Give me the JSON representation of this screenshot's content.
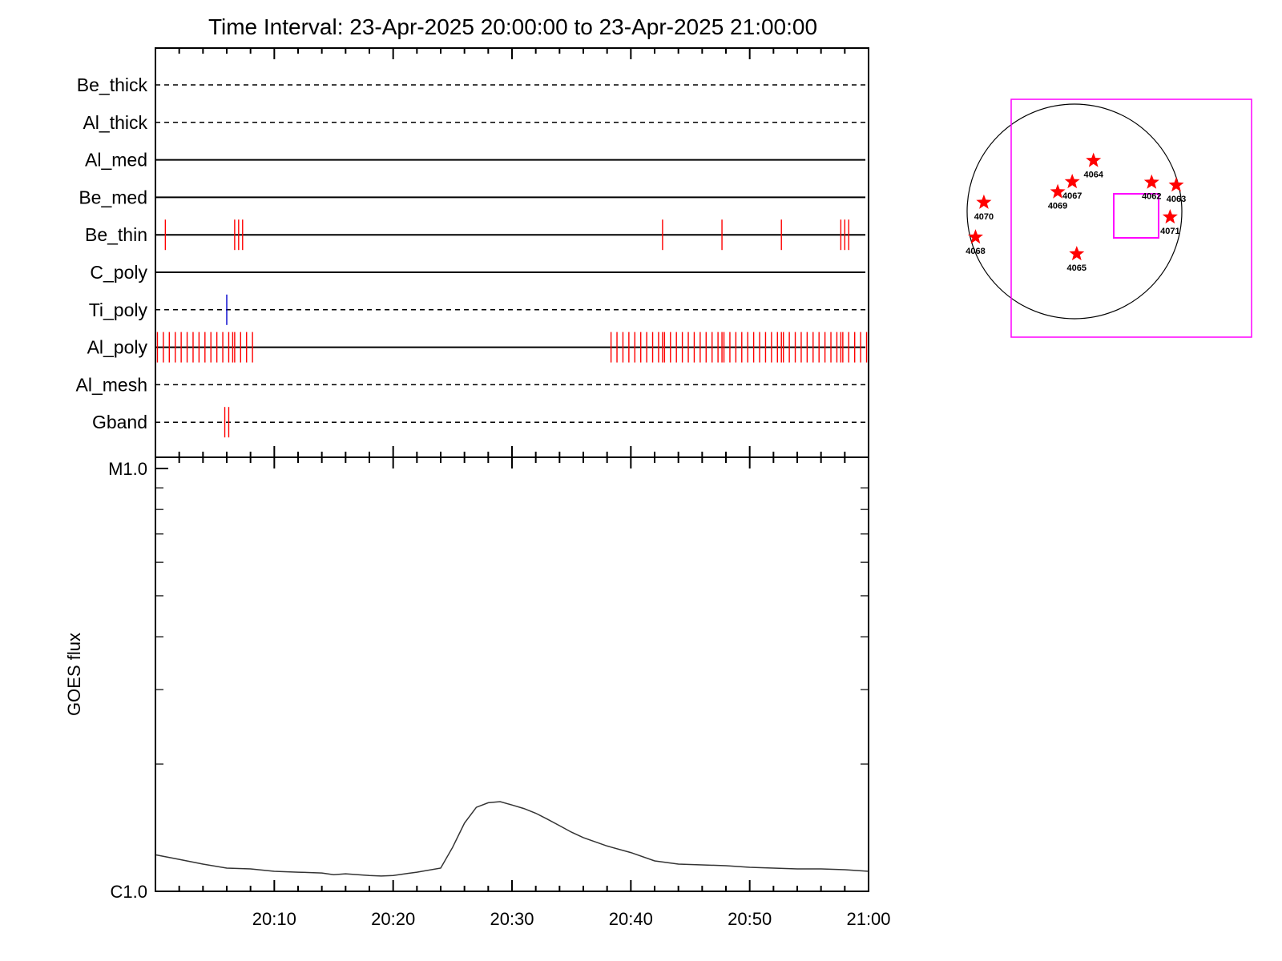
{
  "chart_data": [
    {
      "type": "event-timeline",
      "title": "Time Interval: 23-Apr-2025 20:00:00 to 23-Apr-2025 21:00:00",
      "x_range": [
        "20:00",
        "21:00"
      ],
      "rows": [
        {
          "name": "Be_thick",
          "style": "dashed",
          "events": []
        },
        {
          "name": "Al_thick",
          "style": "dashed",
          "events": []
        },
        {
          "name": "Al_med",
          "style": "solid",
          "events": []
        },
        {
          "name": "Be_med",
          "style": "solid",
          "events": []
        },
        {
          "name": "Be_thin",
          "style": "solid",
          "events": [
            {
              "t": "20:00:50",
              "color": "#ff0000"
            },
            {
              "t": "20:06:40",
              "color": "#ff0000"
            },
            {
              "t": "20:07:00",
              "color": "#ff0000"
            },
            {
              "t": "20:07:20",
              "color": "#ff0000"
            },
            {
              "t": "20:42:40",
              "color": "#ff0000"
            },
            {
              "t": "20:47:40",
              "color": "#ff0000"
            },
            {
              "t": "20:52:40",
              "color": "#ff0000"
            },
            {
              "t": "20:57:40",
              "color": "#ff0000"
            },
            {
              "t": "20:58:00",
              "color": "#ff0000"
            },
            {
              "t": "20:58:20",
              "color": "#ff0000"
            }
          ]
        },
        {
          "name": "C_poly",
          "style": "solid",
          "events": []
        },
        {
          "name": "Ti_poly",
          "style": "dashed",
          "events": [
            {
              "t": "20:06:00",
              "color": "#0000cc"
            }
          ]
        },
        {
          "name": "Al_poly",
          "style": "solid",
          "events": [
            {
              "t": "20:00:10",
              "color": "#ff0000"
            },
            {
              "t": "20:00:40",
              "color": "#ff0000"
            },
            {
              "t": "20:01:10",
              "color": "#ff0000"
            },
            {
              "t": "20:01:40",
              "color": "#ff0000"
            },
            {
              "t": "20:02:10",
              "color": "#ff0000"
            },
            {
              "t": "20:02:40",
              "color": "#ff0000"
            },
            {
              "t": "20:03:10",
              "color": "#ff0000"
            },
            {
              "t": "20:03:40",
              "color": "#ff0000"
            },
            {
              "t": "20:04:10",
              "color": "#ff0000"
            },
            {
              "t": "20:04:40",
              "color": "#ff0000"
            },
            {
              "t": "20:05:10",
              "color": "#ff0000"
            },
            {
              "t": "20:05:40",
              "color": "#ff0000"
            },
            {
              "t": "20:06:10",
              "color": "#ff0000"
            },
            {
              "t": "20:06:30",
              "color": "#ff0000"
            },
            {
              "t": "20:06:40",
              "color": "#ff0000"
            },
            {
              "t": "20:07:10",
              "color": "#ff0000"
            },
            {
              "t": "20:07:40",
              "color": "#ff0000"
            },
            {
              "t": "20:08:10",
              "color": "#ff0000"
            },
            {
              "t": "20:38:20",
              "color": "#ff0000"
            },
            {
              "t": "20:38:50",
              "color": "#ff0000"
            },
            {
              "t": "20:39:20",
              "color": "#ff0000"
            },
            {
              "t": "20:39:50",
              "color": "#ff0000"
            },
            {
              "t": "20:40:20",
              "color": "#ff0000"
            },
            {
              "t": "20:40:50",
              "color": "#ff0000"
            },
            {
              "t": "20:41:20",
              "color": "#ff0000"
            },
            {
              "t": "20:41:50",
              "color": "#ff0000"
            },
            {
              "t": "20:42:20",
              "color": "#ff0000"
            },
            {
              "t": "20:42:40",
              "color": "#ff0000"
            },
            {
              "t": "20:42:50",
              "color": "#ff0000"
            },
            {
              "t": "20:43:20",
              "color": "#ff0000"
            },
            {
              "t": "20:43:50",
              "color": "#ff0000"
            },
            {
              "t": "20:44:20",
              "color": "#ff0000"
            },
            {
              "t": "20:44:50",
              "color": "#ff0000"
            },
            {
              "t": "20:45:20",
              "color": "#ff0000"
            },
            {
              "t": "20:45:50",
              "color": "#ff0000"
            },
            {
              "t": "20:46:20",
              "color": "#ff0000"
            },
            {
              "t": "20:46:50",
              "color": "#ff0000"
            },
            {
              "t": "20:47:20",
              "color": "#ff0000"
            },
            {
              "t": "20:47:40",
              "color": "#ff0000"
            },
            {
              "t": "20:47:50",
              "color": "#ff0000"
            },
            {
              "t": "20:48:20",
              "color": "#ff0000"
            },
            {
              "t": "20:48:50",
              "color": "#ff0000"
            },
            {
              "t": "20:49:20",
              "color": "#ff0000"
            },
            {
              "t": "20:49:50",
              "color": "#ff0000"
            },
            {
              "t": "20:50:20",
              "color": "#ff0000"
            },
            {
              "t": "20:50:50",
              "color": "#ff0000"
            },
            {
              "t": "20:51:20",
              "color": "#ff0000"
            },
            {
              "t": "20:51:50",
              "color": "#ff0000"
            },
            {
              "t": "20:52:20",
              "color": "#ff0000"
            },
            {
              "t": "20:52:40",
              "color": "#ff0000"
            },
            {
              "t": "20:52:50",
              "color": "#ff0000"
            },
            {
              "t": "20:53:20",
              "color": "#ff0000"
            },
            {
              "t": "20:53:50",
              "color": "#ff0000"
            },
            {
              "t": "20:54:20",
              "color": "#ff0000"
            },
            {
              "t": "20:54:50",
              "color": "#ff0000"
            },
            {
              "t": "20:55:20",
              "color": "#ff0000"
            },
            {
              "t": "20:55:50",
              "color": "#ff0000"
            },
            {
              "t": "20:56:20",
              "color": "#ff0000"
            },
            {
              "t": "20:56:50",
              "color": "#ff0000"
            },
            {
              "t": "20:57:20",
              "color": "#ff0000"
            },
            {
              "t": "20:57:40",
              "color": "#ff0000"
            },
            {
              "t": "20:57:50",
              "color": "#ff0000"
            },
            {
              "t": "20:58:20",
              "color": "#ff0000"
            },
            {
              "t": "20:58:50",
              "color": "#ff0000"
            },
            {
              "t": "20:59:20",
              "color": "#ff0000"
            },
            {
              "t": "20:59:50",
              "color": "#ff0000"
            }
          ]
        },
        {
          "name": "Al_mesh",
          "style": "dashed",
          "events": []
        },
        {
          "name": "Gband",
          "style": "dashed",
          "events": [
            {
              "t": "20:05:50",
              "color": "#ff0000"
            },
            {
              "t": "20:06:10",
              "color": "#ff0000"
            }
          ]
        }
      ]
    },
    {
      "type": "line",
      "ylabel": "GOES flux",
      "yscale": "log",
      "ylim": [
        1e-06,
        1e-05
      ],
      "y_tick_labels": [
        {
          "value": 1e-05,
          "label": "M1.0"
        },
        {
          "value": 1e-06,
          "label": "C1.0"
        }
      ],
      "x_tick_labels": [
        "20:10",
        "20:20",
        "20:30",
        "20:40",
        "20:50",
        "21:00"
      ],
      "grid": false,
      "series": [
        {
          "color": "#333333",
          "x": [
            "20:00",
            "20:02",
            "20:04",
            "20:06",
            "20:08",
            "20:10",
            "20:12",
            "20:14",
            "20:15",
            "20:16",
            "20:18",
            "20:19",
            "20:20",
            "20:22",
            "20:24",
            "20:25",
            "20:26",
            "20:27",
            "20:28",
            "20:29",
            "20:30",
            "20:31",
            "20:32",
            "20:33",
            "20:34",
            "20:35",
            "20:36",
            "20:38",
            "20:40",
            "20:42",
            "20:44",
            "20:46",
            "20:48",
            "20:50",
            "20:52",
            "20:54",
            "20:56",
            "20:58",
            "21:00"
          ],
          "y": [
            1.22e-06,
            1.19e-06,
            1.16e-06,
            1.135e-06,
            1.13e-06,
            1.115e-06,
            1.11e-06,
            1.105e-06,
            1.095e-06,
            1.1e-06,
            1.09e-06,
            1.087e-06,
            1.09e-06,
            1.11e-06,
            1.135e-06,
            1.27e-06,
            1.45e-06,
            1.58e-06,
            1.62e-06,
            1.63e-06,
            1.6e-06,
            1.57e-06,
            1.53e-06,
            1.48e-06,
            1.43e-06,
            1.38e-06,
            1.34e-06,
            1.28e-06,
            1.235e-06,
            1.18e-06,
            1.16e-06,
            1.155e-06,
            1.15e-06,
            1.14e-06,
            1.135e-06,
            1.13e-06,
            1.13e-06,
            1.125e-06,
            1.115e-06
          ]
        }
      ]
    },
    {
      "type": "scatter",
      "points": [
        {
          "label": "4064",
          "x": 170,
          "y": 455
        },
        {
          "label": "4063",
          "x": 910,
          "y": 235
        },
        {
          "label": "4062",
          "x": 690,
          "y": 260
        },
        {
          "label": "4067",
          "x": -20,
          "y": 265
        },
        {
          "label": "4069",
          "x": -150,
          "y": 175
        },
        {
          "label": "4070",
          "x": -810,
          "y": 80
        },
        {
          "label": "4071",
          "x": 855,
          "y": -50
        },
        {
          "label": "4068",
          "x": -885,
          "y": -230
        },
        {
          "label": "4065",
          "x": 20,
          "y": -380
        }
      ]
    }
  ],
  "colors": {
    "red_event": "#ff0000",
    "blue_event": "#0000cc",
    "fov_box": "#ff00ff",
    "star": "#ff0000"
  }
}
